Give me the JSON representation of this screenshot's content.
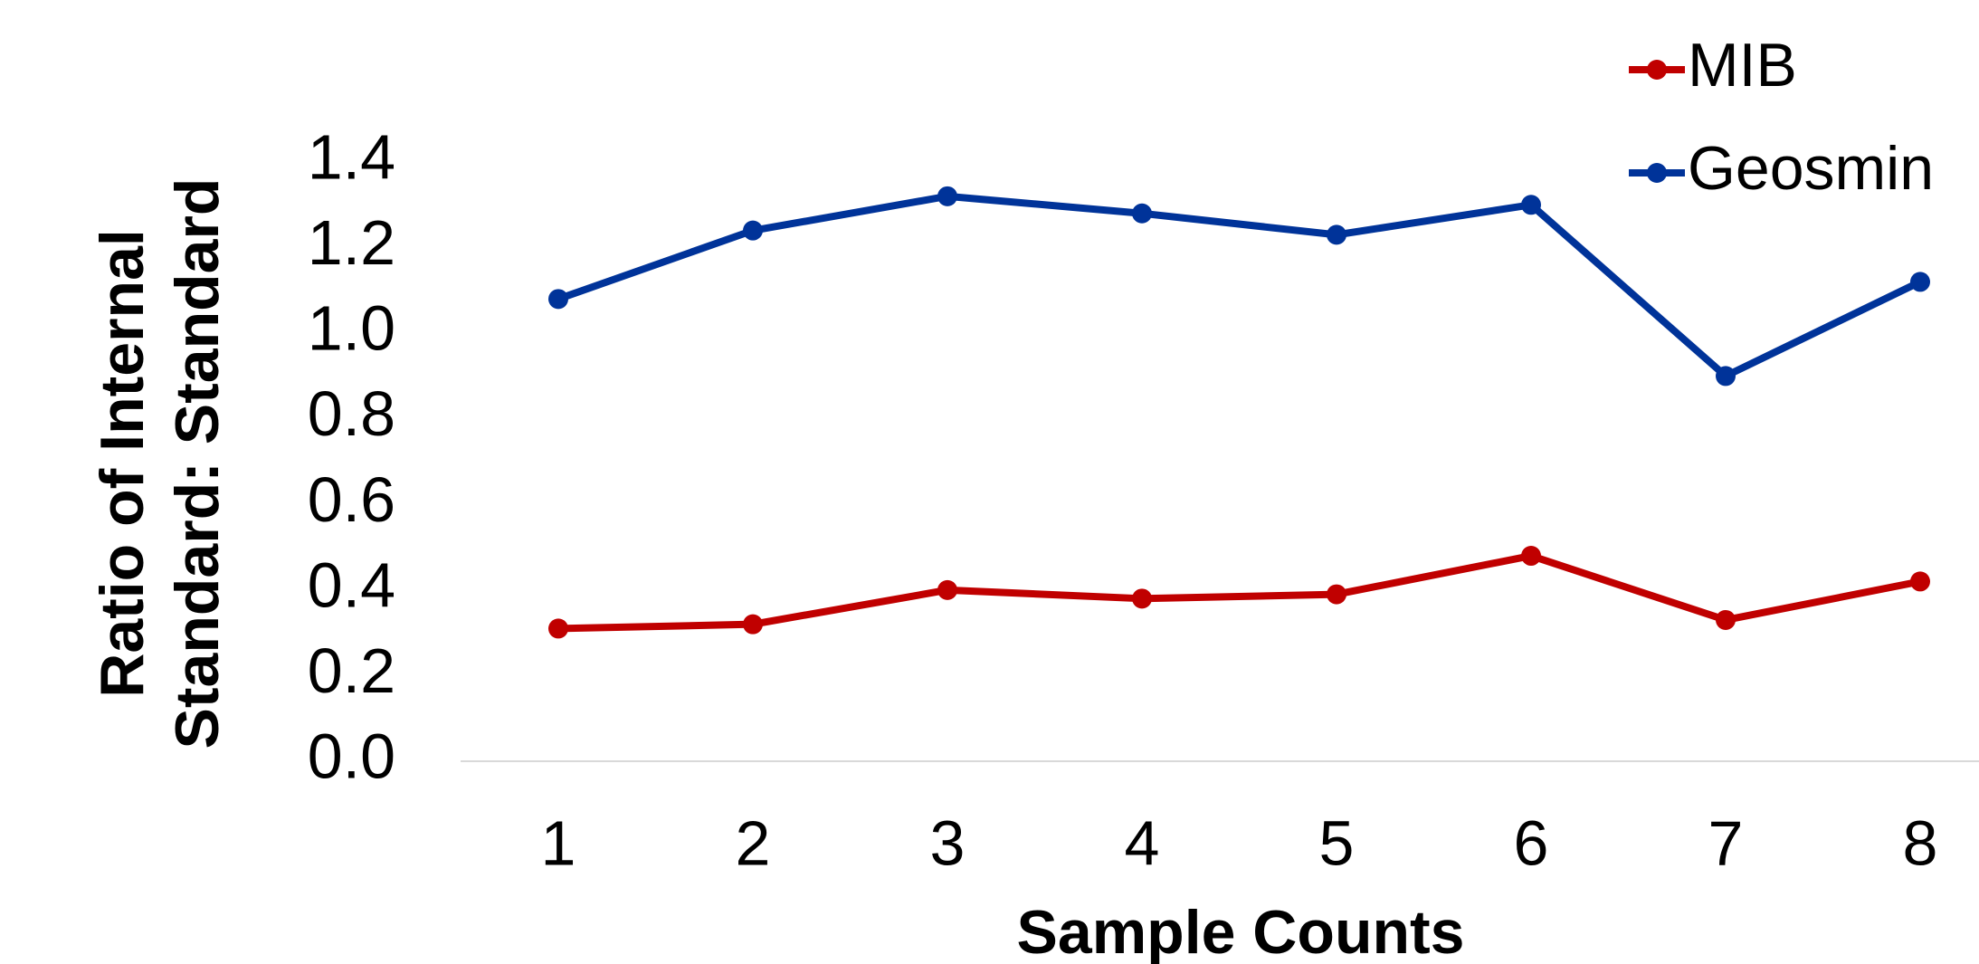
{
  "chart_data": {
    "type": "line",
    "x_label": "Sample Counts",
    "y_label": [
      "Ratio of Internal",
      "Standard: Standard"
    ],
    "categories": [
      "1",
      "2",
      "3",
      "4",
      "5",
      "6",
      "7",
      "8"
    ],
    "series": [
      {
        "name": "MIB",
        "color": "#c00000",
        "values": [
          0.31,
          0.32,
          0.4,
          0.38,
          0.39,
          0.48,
          0.33,
          0.42
        ]
      },
      {
        "name": "Geosmin",
        "color": "#003399",
        "values": [
          1.08,
          1.24,
          1.32,
          1.28,
          1.23,
          1.3,
          0.9,
          1.12
        ]
      }
    ],
    "ylim": [
      0,
      1.4
    ],
    "yticks": [
      {
        "value": 0,
        "label": "0.0"
      },
      0.2,
      0.4,
      0.6,
      0.8,
      {
        "value": 1,
        "label": "1.0"
      },
      1.2,
      1.4
    ],
    "grid": false,
    "legend": "top-right"
  }
}
